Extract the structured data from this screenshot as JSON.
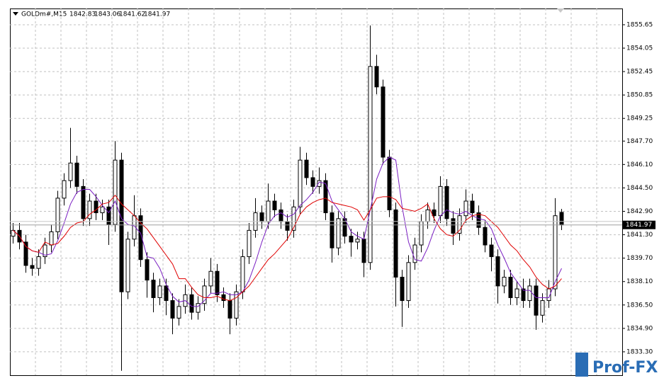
{
  "chart_data": {
    "type": "candlestick",
    "title": "GOLDm#,M15",
    "open": [
      1841.2,
      1841.6,
      1840.8,
      1839.2,
      1839.0,
      1839.8,
      1840.6,
      1841.5,
      1843.8,
      1845.0,
      1846.2,
      1844.6,
      1842.4,
      1843.6,
      1842.8,
      1843.2,
      1842.0,
      1846.4,
      1837.4,
      1841.0,
      1842.6,
      1839.6,
      1838.2,
      1837.0,
      1837.8,
      1836.8,
      1835.6,
      1836.4,
      1837.2,
      1836.0,
      1836.6,
      1837.8,
      1838.8,
      1837.2,
      1836.8,
      1835.6,
      1837.4,
      1839.8,
      1841.6,
      1842.8,
      1842.2,
      1843.6,
      1843.0,
      1842.2,
      1841.6,
      1843.2,
      1846.4,
      1845.2,
      1844.6,
      1845.0,
      1842.8,
      1840.4,
      1842.4,
      1841.2,
      1840.8,
      1841.0,
      1839.4,
      1852.8,
      1851.4,
      1846.6,
      1843.0,
      1838.4,
      1836.8,
      1839.4,
      1840.6,
      1842.2,
      1843.0,
      1842.6,
      1844.6,
      1842.4,
      1841.4,
      1842.6,
      1843.6,
      1842.8,
      1841.8,
      1840.6,
      1839.8,
      1837.8,
      1838.4,
      1837.0,
      1837.6,
      1836.8,
      1837.8,
      1835.8,
      1836.8,
      1837.6,
      1842.83
    ],
    "high": [
      1842.1,
      1842.1,
      1841.3,
      1839.7,
      1840.3,
      1841.1,
      1842.0,
      1844.3,
      1845.5,
      1848.6,
      1846.7,
      1845.1,
      1844.1,
      1844.1,
      1843.7,
      1843.7,
      1847.7,
      1846.9,
      1841.5,
      1844.0,
      1843.1,
      1840.1,
      1838.7,
      1838.3,
      1838.3,
      1837.3,
      1836.9,
      1837.9,
      1837.7,
      1837.1,
      1838.3,
      1839.7,
      1839.3,
      1837.7,
      1837.3,
      1837.9,
      1840.3,
      1842.1,
      1843.8,
      1843.3,
      1844.8,
      1844.1,
      1843.5,
      1842.7,
      1843.7,
      1847.3,
      1846.9,
      1845.7,
      1845.9,
      1845.5,
      1843.3,
      1842.9,
      1842.9,
      1841.7,
      1841.5,
      1841.5,
      1855.6,
      1853.6,
      1851.9,
      1847.1,
      1843.5,
      1838.9,
      1839.9,
      1841.1,
      1842.7,
      1843.5,
      1843.5,
      1845.3,
      1845.1,
      1842.9,
      1843.1,
      1844.4,
      1844.1,
      1843.3,
      1842.3,
      1841.1,
      1840.3,
      1838.9,
      1838.9,
      1838.1,
      1838.3,
      1838.3,
      1838.3,
      1837.3,
      1838.2,
      1843.8,
      1843.06
    ],
    "low": [
      1840.7,
      1840.3,
      1838.7,
      1838.5,
      1838.5,
      1839.3,
      1840.1,
      1841.0,
      1843.3,
      1844.5,
      1844.1,
      1841.9,
      1841.9,
      1842.3,
      1842.3,
      1840.6,
      1841.5,
      1832.0,
      1836.9,
      1840.5,
      1839.1,
      1837.0,
      1836.0,
      1836.5,
      1835.8,
      1834.5,
      1835.1,
      1835.9,
      1835.5,
      1835.5,
      1836.1,
      1837.3,
      1836.7,
      1836.3,
      1834.5,
      1835.1,
      1836.9,
      1839.3,
      1841.1,
      1841.7,
      1841.7,
      1842.5,
      1841.7,
      1840.9,
      1841.1,
      1842.7,
      1844.7,
      1844.1,
      1844.1,
      1842.3,
      1839.4,
      1839.9,
      1840.7,
      1839.8,
      1840.3,
      1838.4,
      1838.9,
      1850.9,
      1846.1,
      1842.5,
      1836.4,
      1835.0,
      1836.3,
      1838.9,
      1840.1,
      1841.7,
      1842.1,
      1842.1,
      1841.9,
      1840.6,
      1840.9,
      1842.1,
      1842.3,
      1841.3,
      1840.1,
      1838.8,
      1836.6,
      1837.3,
      1836.5,
      1836.5,
      1836.3,
      1836.3,
      1834.8,
      1835.3,
      1836.3,
      1837.1,
      1841.62
    ],
    "close": [
      1841.6,
      1840.8,
      1839.2,
      1839.0,
      1839.8,
      1840.6,
      1841.5,
      1843.8,
      1845.0,
      1846.2,
      1844.6,
      1842.4,
      1843.6,
      1842.8,
      1843.2,
      1842.0,
      1846.4,
      1837.4,
      1841.0,
      1842.6,
      1839.6,
      1838.2,
      1837.0,
      1837.8,
      1836.8,
      1835.6,
      1836.4,
      1837.2,
      1836.0,
      1836.6,
      1837.8,
      1838.8,
      1837.2,
      1836.8,
      1835.6,
      1837.4,
      1839.8,
      1841.6,
      1842.8,
      1842.2,
      1843.6,
      1843.0,
      1842.2,
      1841.6,
      1843.2,
      1846.4,
      1845.2,
      1844.6,
      1845.0,
      1842.8,
      1840.4,
      1842.4,
      1841.2,
      1840.8,
      1841.0,
      1839.4,
      1852.8,
      1851.4,
      1846.6,
      1843.0,
      1838.4,
      1836.8,
      1839.4,
      1840.6,
      1842.2,
      1843.0,
      1842.6,
      1844.6,
      1842.4,
      1841.4,
      1842.6,
      1843.6,
      1842.8,
      1841.8,
      1840.6,
      1839.8,
      1837.8,
      1838.4,
      1837.0,
      1837.6,
      1836.8,
      1837.8,
      1835.8,
      1836.8,
      1837.6,
      1842.6,
      1841.97
    ],
    "up_color": "#ffffff",
    "down_color": "#000000",
    "color": "#000000",
    "series": [
      {
        "color": "#7a1fc2",
        "values": [
          1841.6,
          1841.2,
          1840.5,
          1840.2,
          1840.1,
          1839.9,
          1840.0,
          1840.9,
          1842.1,
          1843.4,
          1844.2,
          1844.4,
          1844.4,
          1843.9,
          1843.3,
          1842.8,
          1843.6,
          1842.4,
          1842.0,
          1841.9,
          1841.4,
          1839.8,
          1839.7,
          1839.0,
          1837.9,
          1837.1,
          1836.7,
          1836.8,
          1836.4,
          1836.4,
          1836.8,
          1837.3,
          1837.3,
          1837.4,
          1837.2,
          1837.2,
          1837.4,
          1838.2,
          1839.4,
          1840.8,
          1842.0,
          1842.6,
          1842.8,
          1842.5,
          1842.7,
          1843.3,
          1843.7,
          1844.2,
          1844.9,
          1844.8,
          1843.6,
          1843.0,
          1842.4,
          1841.5,
          1841.2,
          1841.0,
          1843.0,
          1845.1,
          1846.2,
          1846.6,
          1846.4,
          1843.2,
          1840.8,
          1839.6,
          1839.5,
          1840.4,
          1841.6,
          1842.6,
          1843.0,
          1842.8,
          1842.7,
          1842.9,
          1842.6,
          1842.4,
          1842.3,
          1841.7,
          1840.6,
          1839.7,
          1838.7,
          1838.1,
          1837.5,
          1837.5,
          1837.0,
          1837.0,
          1837.0,
          1838.1,
          1839.0
        ]
      },
      {
        "color": "#e00000",
        "values": [
          1841.6,
          1841.2,
          1840.5,
          1840.2,
          1840.1,
          1840.8,
          1840.6,
          1840.7,
          1841.2,
          1841.8,
          1842.1,
          1842.2,
          1842.7,
          1843.0,
          1843.4,
          1843.5,
          1844.0,
          1843.4,
          1843.0,
          1842.6,
          1842.1,
          1841.7,
          1841.1,
          1840.5,
          1839.9,
          1839.3,
          1838.3,
          1838.3,
          1837.7,
          1837.2,
          1837.0,
          1837.0,
          1837.1,
          1836.9,
          1836.8,
          1837.0,
          1837.4,
          1837.8,
          1838.4,
          1839.0,
          1839.6,
          1840.0,
          1840.5,
          1841.0,
          1841.8,
          1842.7,
          1843.2,
          1843.5,
          1843.7,
          1843.8,
          1843.5,
          1843.4,
          1843.3,
          1843.2,
          1843.0,
          1842.3,
          1843.0,
          1843.8,
          1843.9,
          1843.9,
          1843.7,
          1843.1,
          1843.0,
          1842.9,
          1843.1,
          1843.4,
          1842.4,
          1841.7,
          1841.3,
          1841.2,
          1841.6,
          1842.3,
          1842.6,
          1842.7,
          1842.6,
          1842.2,
          1841.8,
          1841.2,
          1840.6,
          1840.2,
          1839.6,
          1839.1,
          1838.4,
          1837.9,
          1837.6,
          1837.8,
          1838.3
        ]
      }
    ],
    "ylim": [
      1831.7,
      1856.76
    ],
    "yticks": [
      {
        "value": 1833.3,
        "label": "1833.30"
      },
      {
        "value": 1834.9,
        "label": "1834.90"
      },
      {
        "value": 1836.5,
        "label": "1836.50"
      },
      {
        "value": 1838.1,
        "label": "1838.10"
      },
      {
        "value": 1839.7,
        "label": "1839.70"
      },
      {
        "value": 1841.3,
        "label": "1841.30"
      },
      {
        "value": 1842.9,
        "label": "1842.90"
      },
      {
        "value": 1844.5,
        "label": "1844.50"
      },
      {
        "value": 1846.1,
        "label": "1846.10"
      },
      {
        "value": 1847.7,
        "label": "1847.70"
      },
      1849.25,
      1850.85,
      1852.45,
      1854.05,
      1855.65
    ],
    "grid": true,
    "watermark": "Prof-FX"
  }
}
